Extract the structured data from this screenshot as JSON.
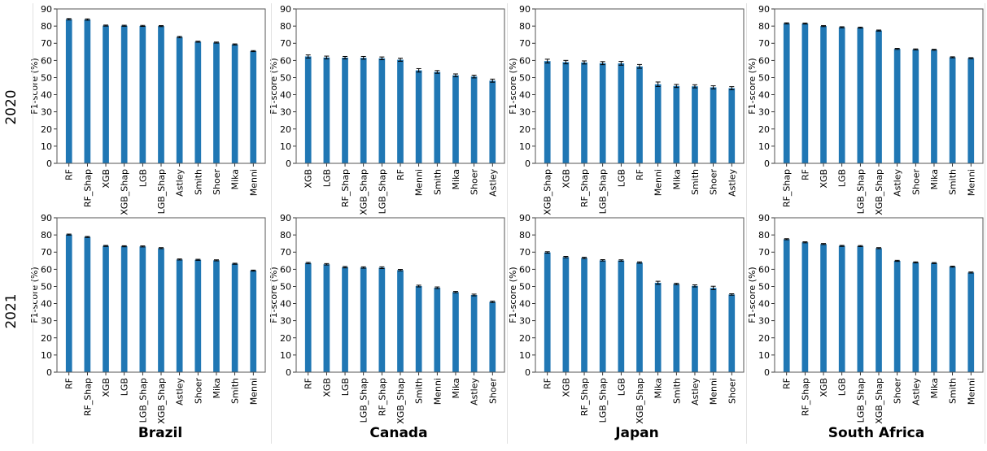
{
  "figure": {
    "row_labels": [
      "2020",
      "2021"
    ],
    "column_labels": [
      "Brazil",
      "Canada",
      "Japan",
      "South Africa"
    ]
  },
  "colors": {
    "bar": "#2077b4",
    "error": "#000000",
    "axis": "#555555"
  },
  "chart_data": [
    {
      "type": "bar",
      "row": "2020",
      "column": "Brazil",
      "ylabel": "F1-score (%)",
      "ylim": [
        0,
        90
      ],
      "yticks": [
        0,
        10,
        20,
        30,
        40,
        50,
        60,
        70,
        80,
        90
      ],
      "categories": [
        "RF",
        "RF_Shap",
        "XGB",
        "XGB_Shap",
        "LGB",
        "LGB_Shap",
        "Astley",
        "Smith",
        "Shoer",
        "Mika",
        "Menni"
      ],
      "values": [
        84.0,
        83.8,
        80.3,
        80.2,
        80.1,
        80.0,
        73.6,
        70.9,
        70.4,
        69.3,
        65.4
      ],
      "errors": [
        0.4,
        0.4,
        0.3,
        0.3,
        0.3,
        0.3,
        0.4,
        0.3,
        0.3,
        0.3,
        0.3
      ]
    },
    {
      "type": "bar",
      "row": "2020",
      "column": "Canada",
      "ylabel": "F1-score (%)",
      "ylim": [
        0,
        90
      ],
      "yticks": [
        0,
        10,
        20,
        30,
        40,
        50,
        60,
        70,
        80,
        90
      ],
      "categories": [
        "XGB",
        "LGB",
        "RF_Shap",
        "XGB_Shap",
        "LGB_Shap",
        "RF",
        "Menni",
        "Smith",
        "Mika",
        "Shoer",
        "Astley"
      ],
      "values": [
        62.3,
        61.7,
        61.6,
        61.5,
        61.2,
        60.4,
        54.2,
        53.3,
        51.3,
        50.6,
        48.2
      ],
      "errors": [
        0.9,
        0.8,
        0.7,
        0.8,
        0.8,
        0.9,
        1.0,
        0.8,
        0.8,
        0.8,
        0.9
      ]
    },
    {
      "type": "bar",
      "row": "2020",
      "column": "Japan",
      "ylabel": "F1-score (%)",
      "ylim": [
        0,
        90
      ],
      "yticks": [
        0,
        10,
        20,
        30,
        40,
        50,
        60,
        70,
        80,
        90
      ],
      "categories": [
        "XGB_Shap",
        "XGB",
        "RF_Shap",
        "LGB_Shap",
        "LGB",
        "RF",
        "Menni",
        "Mika",
        "Smith",
        "Shoer",
        "Astley"
      ],
      "values": [
        59.6,
        59.0,
        58.8,
        58.4,
        58.3,
        56.5,
        46.1,
        45.1,
        44.9,
        44.3,
        43.8
      ],
      "errors": [
        1.1,
        1.0,
        0.9,
        0.9,
        1.1,
        1.1,
        1.3,
        0.9,
        0.9,
        0.9,
        0.9
      ]
    },
    {
      "type": "bar",
      "row": "2020",
      "column": "South Africa",
      "ylabel": "F1-score (%)",
      "ylim": [
        0,
        90
      ],
      "yticks": [
        0,
        10,
        20,
        30,
        40,
        50,
        60,
        70,
        80,
        90
      ],
      "categories": [
        "RF_Shap",
        "RF",
        "XGB",
        "LGB",
        "LGB_Shap",
        "XGB_Shap",
        "Astley",
        "Shoer",
        "Mika",
        "Smith",
        "Menni"
      ],
      "values": [
        81.6,
        81.5,
        80.0,
        79.3,
        79.1,
        77.4,
        66.7,
        66.4,
        66.2,
        61.8,
        61.3
      ],
      "errors": [
        0.3,
        0.3,
        0.3,
        0.3,
        0.3,
        0.3,
        0.3,
        0.3,
        0.3,
        0.3,
        0.3
      ]
    },
    {
      "type": "bar",
      "row": "2021",
      "column": "Brazil",
      "ylabel": "F1-score (%)",
      "ylim": [
        0,
        90
      ],
      "yticks": [
        0,
        10,
        20,
        30,
        40,
        50,
        60,
        70,
        80,
        90
      ],
      "categories": [
        "RF",
        "RF_Shap",
        "XGB",
        "LGB",
        "LGB_Shap",
        "XGB_Shap",
        "Astley",
        "Shoer",
        "Mika",
        "Smith",
        "Menni"
      ],
      "values": [
        80.2,
        78.8,
        73.6,
        73.4,
        73.3,
        72.3,
        65.7,
        65.5,
        65.2,
        63.2,
        59.2
      ],
      "errors": [
        0.3,
        0.3,
        0.3,
        0.3,
        0.3,
        0.3,
        0.3,
        0.3,
        0.3,
        0.3,
        0.3
      ]
    },
    {
      "type": "bar",
      "row": "2021",
      "column": "Canada",
      "ylabel": "F1-score (%)",
      "ylim": [
        0,
        90
      ],
      "yticks": [
        0,
        10,
        20,
        30,
        40,
        50,
        60,
        70,
        80,
        90
      ],
      "categories": [
        "RF",
        "XGB",
        "LGB",
        "LGB_Shap",
        "RF_Shap",
        "XGB_Shap",
        "Smith",
        "Menni",
        "Mika",
        "Astley",
        "Shoer"
      ],
      "values": [
        63.6,
        62.9,
        61.2,
        61.0,
        60.9,
        59.5,
        50.2,
        49.2,
        46.7,
        45.0,
        41.0
      ],
      "errors": [
        0.4,
        0.4,
        0.4,
        0.4,
        0.5,
        0.4,
        0.5,
        0.5,
        0.4,
        0.5,
        0.4
      ]
    },
    {
      "type": "bar",
      "row": "2021",
      "column": "Japan",
      "ylabel": "F1-score (%)",
      "ylim": [
        0,
        90
      ],
      "yticks": [
        0,
        10,
        20,
        30,
        40,
        50,
        60,
        70,
        80,
        90
      ],
      "categories": [
        "RF",
        "XGB",
        "RF_Shap",
        "LGB_Shap",
        "LGB",
        "XGB_Shap",
        "Mika",
        "Smith",
        "Astley",
        "Menni",
        "Shoer"
      ],
      "values": [
        69.8,
        67.1,
        66.6,
        65.2,
        65.1,
        63.9,
        52.1,
        51.4,
        50.3,
        49.1,
        45.3
      ],
      "errors": [
        0.4,
        0.4,
        0.4,
        0.4,
        0.4,
        0.4,
        0.9,
        0.4,
        0.6,
        1.0,
        0.4
      ]
    },
    {
      "type": "bar",
      "row": "2021",
      "column": "South Africa",
      "ylabel": "F1-score (%)",
      "ylim": [
        0,
        90
      ],
      "yticks": [
        0,
        10,
        20,
        30,
        40,
        50,
        60,
        70,
        80,
        90
      ],
      "categories": [
        "RF",
        "RF_Shap",
        "XGB",
        "LGB",
        "LGB_Shap",
        "XGB_Shap",
        "Shoer",
        "Astley",
        "Mika",
        "Smith",
        "Menni"
      ],
      "values": [
        77.5,
        75.7,
        74.7,
        73.6,
        73.5,
        72.3,
        64.9,
        64.0,
        63.6,
        61.5,
        58.1
      ],
      "errors": [
        0.3,
        0.3,
        0.3,
        0.3,
        0.3,
        0.3,
        0.3,
        0.3,
        0.3,
        0.3,
        0.3
      ]
    }
  ]
}
